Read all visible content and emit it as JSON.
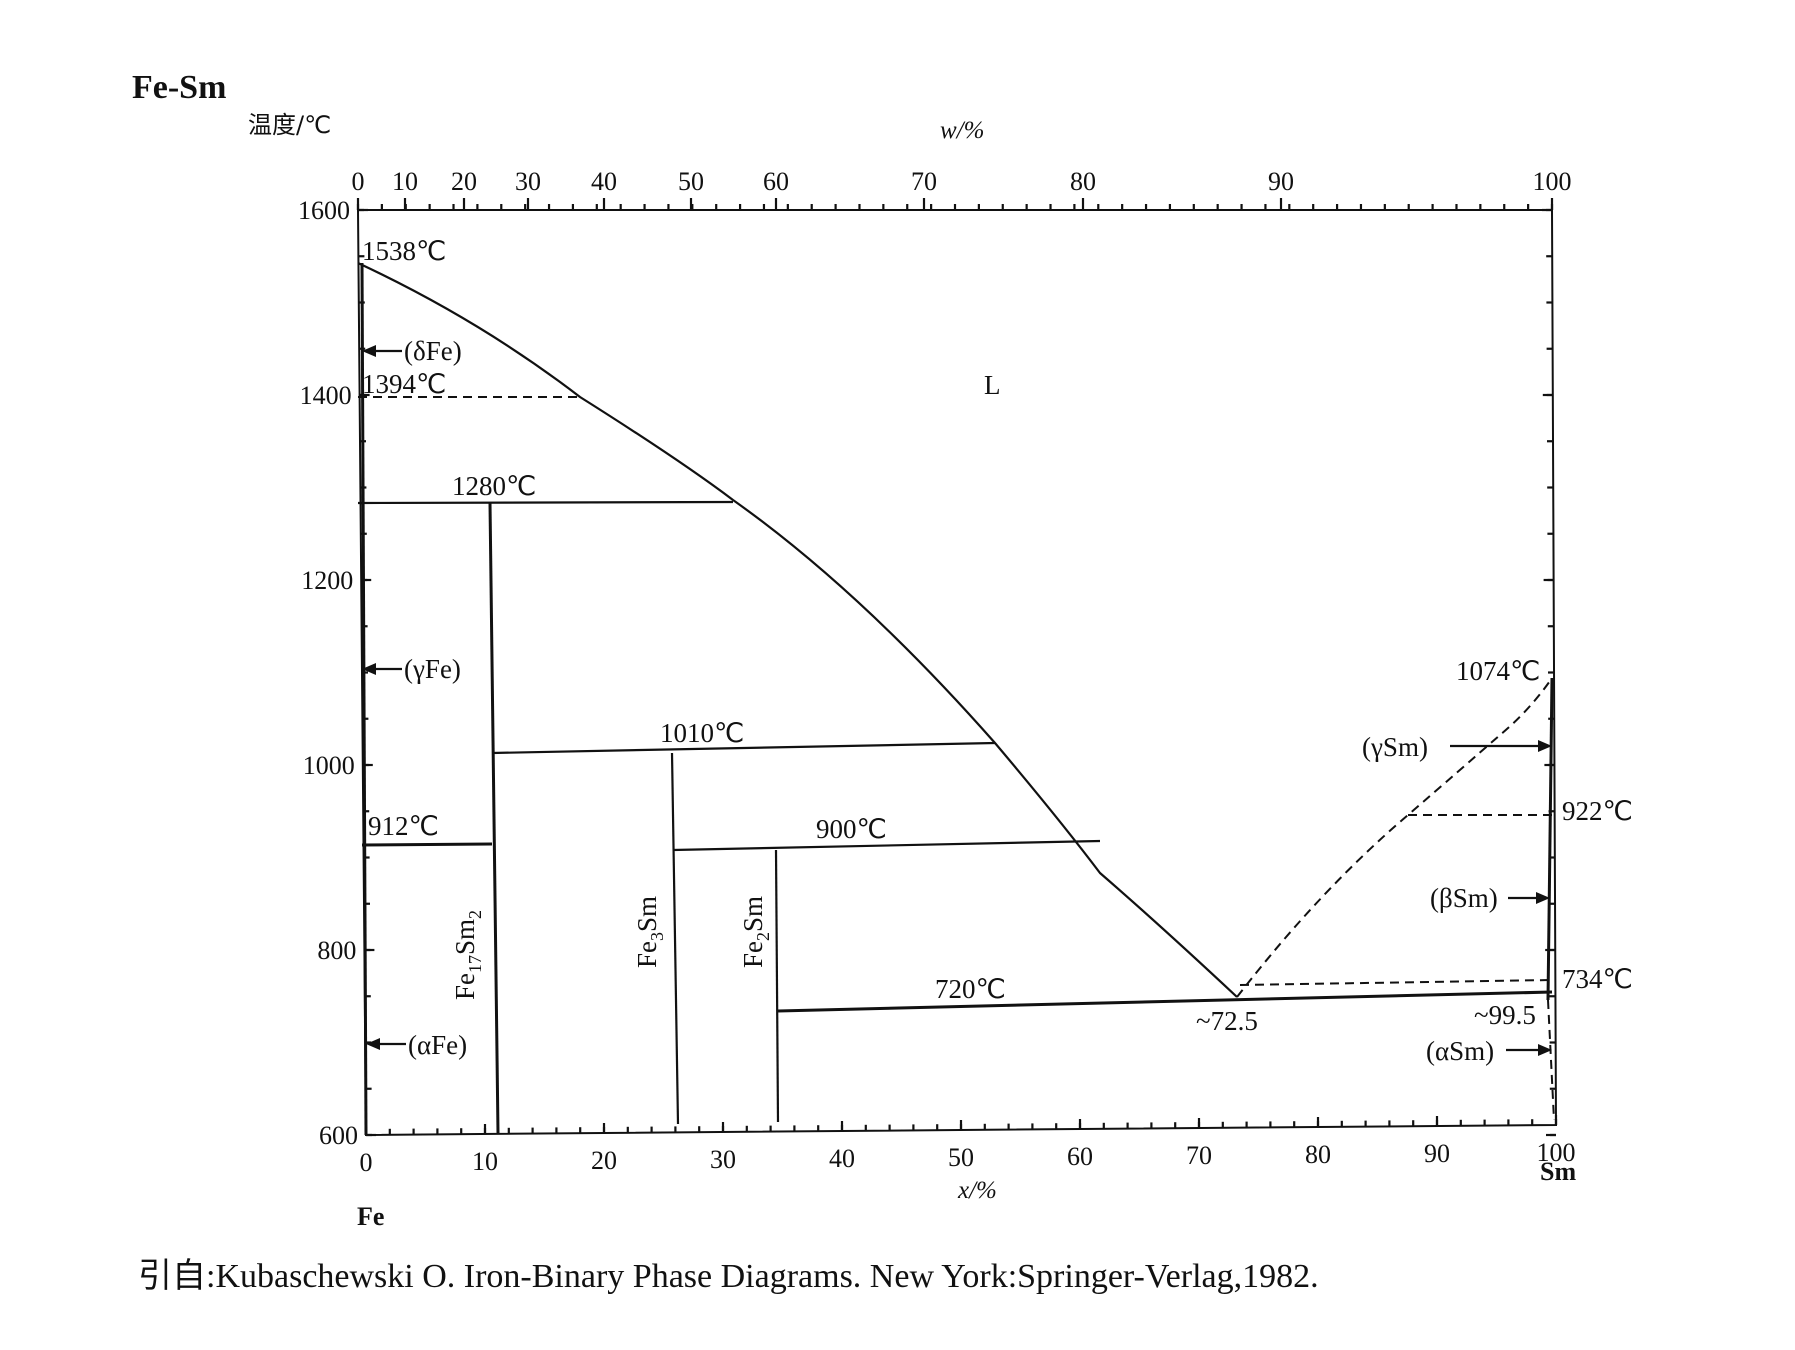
{
  "title": "Fe-Sm",
  "y_axis_label": "温度/℃",
  "top_axis_label": "w/%",
  "bottom_axis_label": "x/%",
  "left_element": "Fe",
  "right_element": "Sm",
  "y_ticks": [
    "1600",
    "1400",
    "1200",
    "1000",
    "800",
    "600"
  ],
  "x_ticks": [
    "0",
    "10",
    "20",
    "30",
    "40",
    "50",
    "60",
    "70",
    "80",
    "90",
    "100"
  ],
  "w_ticks": [
    "0",
    "10",
    "20",
    "30",
    "40",
    "50",
    "60",
    "70",
    "80",
    "90",
    "100"
  ],
  "temperatures": {
    "fe_melt": "1538℃",
    "delta_gamma": "1394℃",
    "peritectic_1280": "1280℃",
    "peritectic_1010": "1010℃",
    "alpha_gamma": "912℃",
    "peritectic_900": "900℃",
    "eutectic_720": "720℃",
    "sm_melt": "1074℃",
    "sm_922": "922℃",
    "sm_734": "734℃"
  },
  "compositions": {
    "eutectic": "~72.5",
    "sm_solvus": "~99.5"
  },
  "phases": {
    "liquid": "L",
    "delta_fe": "(δFe)",
    "gamma_fe": "(γFe)",
    "alpha_fe": "(αFe)",
    "gamma_sm": "(γSm)",
    "beta_sm": "(βSm)",
    "alpha_sm": "(αSm)"
  },
  "compounds": {
    "fe17sm2": {
      "base": "Fe",
      "sub1": "17",
      "mid": "Sm",
      "sub2": "2"
    },
    "fe3sm": {
      "base": "Fe",
      "sub1": "3",
      "mid": "Sm"
    },
    "fe2sm": {
      "base": "Fe",
      "sub1": "2",
      "mid": "Sm"
    }
  },
  "citation": "引自:Kubaschewski O.  Iron-Binary Phase Diagrams. New York:Springer-Verlag,1982."
}
